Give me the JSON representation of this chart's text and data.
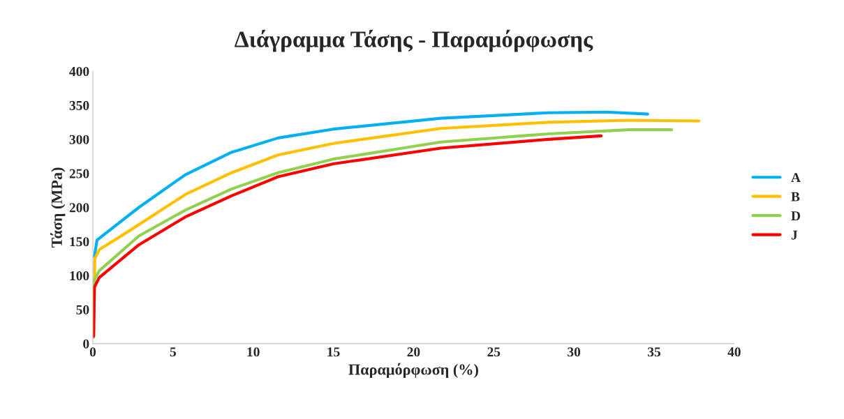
{
  "chart_data": {
    "type": "line",
    "title": "Διάγραμμα Τάσης - Παραμόρφωσης",
    "xlabel": "Παραμόρφωση (%)",
    "ylabel": "Τάση (MPa)",
    "xlim": [
      0,
      40
    ],
    "xticks": [
      0,
      5,
      10,
      15,
      20,
      25,
      30,
      35,
      40
    ],
    "ylim": [
      0,
      400
    ],
    "yticks": [
      0,
      50,
      100,
      150,
      200,
      250,
      300,
      350,
      400
    ],
    "grid": false,
    "legend": "right",
    "marker": "none",
    "line_style": "solid",
    "series": [
      {
        "name": "A",
        "color": "#00b0f0",
        "x": [
          0.1,
          0.26,
          2.87,
          5.77,
          8.65,
          11.55,
          15,
          21.7,
          28.4,
          32,
          34.6
        ],
        "values": [
          128,
          152,
          200,
          248,
          281,
          302,
          315,
          331,
          339,
          340,
          337
        ]
      },
      {
        "name": "B",
        "color": "#ffc000",
        "x": [
          0.05,
          0.12,
          0.4,
          2.1,
          5.77,
          8.65,
          11.55,
          15,
          21.7,
          28.4,
          33.4,
          37.8
        ],
        "values": [
          11,
          124,
          138,
          163,
          219,
          251,
          277,
          294,
          316,
          325,
          328,
          327
        ]
      },
      {
        "name": "D",
        "color": "#92d050",
        "x": [
          0.05,
          0.1,
          0.4,
          2.87,
          5.77,
          8.65,
          11.55,
          15,
          21.7,
          28.4,
          33.4,
          36.1
        ],
        "values": [
          9,
          94,
          107,
          158,
          196,
          227,
          251,
          271,
          296,
          308,
          314,
          314
        ]
      },
      {
        "name": "J",
        "color": "#ff0000",
        "x": [
          0.05,
          0.1,
          0.4,
          2.87,
          5.77,
          8.65,
          11.55,
          15,
          21.7,
          28.4,
          31.7
        ],
        "values": [
          11,
          83,
          97,
          145,
          186,
          217,
          245,
          264,
          287,
          300,
          305
        ]
      }
    ]
  }
}
